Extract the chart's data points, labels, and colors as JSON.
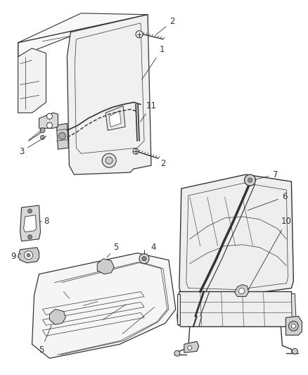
{
  "bg_color": "#ffffff",
  "fig_width": 4.38,
  "fig_height": 5.33,
  "dpi": 100,
  "line_color": "#333333",
  "label_color": "#333333",
  "label_fontsize": 8.5,
  "line_width": 0.7
}
